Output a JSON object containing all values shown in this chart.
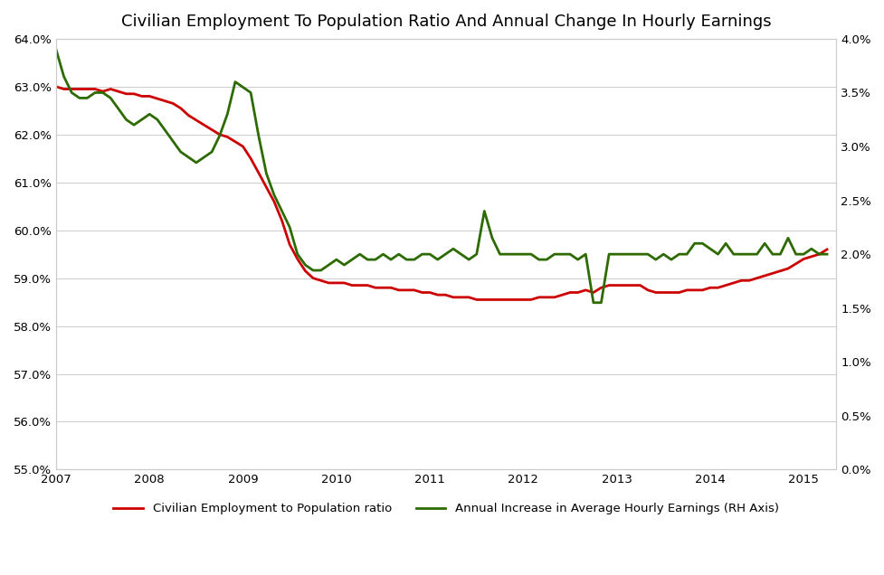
{
  "title": "Civilian Employment To Population Ratio And Annual Change In Hourly Earnings",
  "left_label": "Civilian Employment to Population ratio",
  "right_label": "Annual Increase in Average Hourly Earnings (RH Axis)",
  "left_color": "#cc0000",
  "right_color": "#2d6a00",
  "left_ylim": [
    0.55,
    0.64
  ],
  "right_ylim": [
    0.0,
    0.04
  ],
  "left_yticks": [
    0.55,
    0.56,
    0.57,
    0.58,
    0.59,
    0.6,
    0.61,
    0.62,
    0.63,
    0.64
  ],
  "right_yticks": [
    0.0,
    0.005,
    0.01,
    0.015,
    0.02,
    0.025,
    0.03,
    0.035,
    0.04
  ],
  "xticks": [
    2007,
    2008,
    2009,
    2010,
    2011,
    2012,
    2013,
    2014,
    2015
  ],
  "emp_dates": [
    2007.0,
    2007.083,
    2007.167,
    2007.25,
    2007.333,
    2007.417,
    2007.5,
    2007.583,
    2007.667,
    2007.75,
    2007.833,
    2007.917,
    2008.0,
    2008.083,
    2008.167,
    2008.25,
    2008.333,
    2008.417,
    2008.5,
    2008.583,
    2008.667,
    2008.75,
    2008.833,
    2008.917,
    2009.0,
    2009.083,
    2009.167,
    2009.25,
    2009.333,
    2009.417,
    2009.5,
    2009.583,
    2009.667,
    2009.75,
    2009.833,
    2009.917,
    2010.0,
    2010.083,
    2010.167,
    2010.25,
    2010.333,
    2010.417,
    2010.5,
    2010.583,
    2010.667,
    2010.75,
    2010.833,
    2010.917,
    2011.0,
    2011.083,
    2011.167,
    2011.25,
    2011.333,
    2011.417,
    2011.5,
    2011.583,
    2011.667,
    2011.75,
    2011.833,
    2011.917,
    2012.0,
    2012.083,
    2012.167,
    2012.25,
    2012.333,
    2012.417,
    2012.5,
    2012.583,
    2012.667,
    2012.75,
    2012.833,
    2012.917,
    2013.0,
    2013.083,
    2013.167,
    2013.25,
    2013.333,
    2013.417,
    2013.5,
    2013.583,
    2013.667,
    2013.75,
    2013.833,
    2013.917,
    2014.0,
    2014.083,
    2014.167,
    2014.25,
    2014.333,
    2014.417,
    2014.5,
    2014.583,
    2014.667,
    2014.75,
    2014.833,
    2014.917,
    2015.0,
    2015.083,
    2015.167,
    2015.25
  ],
  "emp_values": [
    0.63,
    0.6295,
    0.6295,
    0.6295,
    0.6295,
    0.6295,
    0.629,
    0.6295,
    0.629,
    0.6285,
    0.6285,
    0.628,
    0.628,
    0.6275,
    0.627,
    0.6265,
    0.6255,
    0.624,
    0.623,
    0.622,
    0.621,
    0.62,
    0.6195,
    0.6185,
    0.6175,
    0.615,
    0.612,
    0.609,
    0.606,
    0.602,
    0.597,
    0.594,
    0.5915,
    0.59,
    0.5895,
    0.589,
    0.589,
    0.589,
    0.5885,
    0.5885,
    0.5885,
    0.588,
    0.588,
    0.588,
    0.5875,
    0.5875,
    0.5875,
    0.587,
    0.587,
    0.5865,
    0.5865,
    0.586,
    0.586,
    0.586,
    0.5855,
    0.5855,
    0.5855,
    0.5855,
    0.5855,
    0.5855,
    0.5855,
    0.5855,
    0.586,
    0.586,
    0.586,
    0.5865,
    0.587,
    0.587,
    0.5875,
    0.587,
    0.588,
    0.5885,
    0.5885,
    0.5885,
    0.5885,
    0.5885,
    0.5875,
    0.587,
    0.587,
    0.587,
    0.587,
    0.5875,
    0.5875,
    0.5875,
    0.588,
    0.588,
    0.5885,
    0.589,
    0.5895,
    0.5895,
    0.59,
    0.5905,
    0.591,
    0.5915,
    0.592,
    0.593,
    0.594,
    0.5945,
    0.595,
    0.596
  ],
  "wage_dates": [
    2007.0,
    2007.083,
    2007.167,
    2007.25,
    2007.333,
    2007.417,
    2007.5,
    2007.583,
    2007.667,
    2007.75,
    2007.833,
    2007.917,
    2008.0,
    2008.083,
    2008.167,
    2008.25,
    2008.333,
    2008.417,
    2008.5,
    2008.583,
    2008.667,
    2008.75,
    2008.833,
    2008.917,
    2009.0,
    2009.083,
    2009.167,
    2009.25,
    2009.333,
    2009.417,
    2009.5,
    2009.583,
    2009.667,
    2009.75,
    2009.833,
    2009.917,
    2010.0,
    2010.083,
    2010.167,
    2010.25,
    2010.333,
    2010.417,
    2010.5,
    2010.583,
    2010.667,
    2010.75,
    2010.833,
    2010.917,
    2011.0,
    2011.083,
    2011.167,
    2011.25,
    2011.333,
    2011.417,
    2011.5,
    2011.583,
    2011.667,
    2011.75,
    2011.833,
    2011.917,
    2012.0,
    2012.083,
    2012.167,
    2012.25,
    2012.333,
    2012.417,
    2012.5,
    2012.583,
    2012.667,
    2012.75,
    2012.833,
    2012.917,
    2013.0,
    2013.083,
    2013.167,
    2013.25,
    2013.333,
    2013.417,
    2013.5,
    2013.583,
    2013.667,
    2013.75,
    2013.833,
    2013.917,
    2014.0,
    2014.083,
    2014.167,
    2014.25,
    2014.333,
    2014.417,
    2014.5,
    2014.583,
    2014.667,
    2014.75,
    2014.833,
    2014.917,
    2015.0,
    2015.083,
    2015.167,
    2015.25
  ],
  "wage_values": [
    0.039,
    0.0365,
    0.035,
    0.0345,
    0.0345,
    0.035,
    0.035,
    0.0345,
    0.0335,
    0.0325,
    0.032,
    0.0325,
    0.033,
    0.0325,
    0.0315,
    0.0305,
    0.0295,
    0.029,
    0.0285,
    0.029,
    0.0295,
    0.031,
    0.033,
    0.036,
    0.0355,
    0.035,
    0.031,
    0.0275,
    0.0255,
    0.024,
    0.0225,
    0.02,
    0.019,
    0.0185,
    0.0185,
    0.019,
    0.0195,
    0.019,
    0.0195,
    0.02,
    0.0195,
    0.0195,
    0.02,
    0.0195,
    0.02,
    0.0195,
    0.0195,
    0.02,
    0.02,
    0.0195,
    0.02,
    0.0205,
    0.02,
    0.0195,
    0.02,
    0.024,
    0.0215,
    0.02,
    0.02,
    0.02,
    0.02,
    0.02,
    0.0195,
    0.0195,
    0.02,
    0.02,
    0.02,
    0.0195,
    0.02,
    0.0155,
    0.0155,
    0.02,
    0.02,
    0.02,
    0.02,
    0.02,
    0.02,
    0.0195,
    0.02,
    0.0195,
    0.02,
    0.02,
    0.021,
    0.021,
    0.0205,
    0.02,
    0.021,
    0.02,
    0.02,
    0.02,
    0.02,
    0.021,
    0.02,
    0.02,
    0.0215,
    0.02,
    0.02,
    0.0205,
    0.02,
    0.02
  ],
  "bg_color": "#ffffff",
  "grid_color": "#cccccc",
  "title_fontsize": 13,
  "tick_fontsize": 9.5,
  "legend_fontsize": 9.5,
  "line_width": 2.0
}
